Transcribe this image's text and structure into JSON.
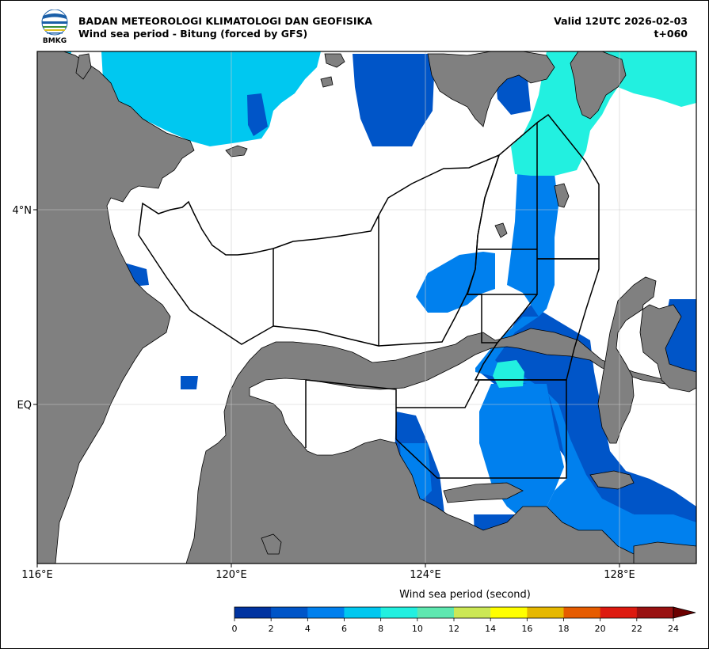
{
  "header": {
    "org_name": "BADAN METEOROLOGI KLIMATOLOGI DAN GEOFISIKA",
    "subtitle": "Wind sea period - Bitung (forced by GFS)",
    "valid": "Valid 12UTC 2026-02-03",
    "lead": "t+060",
    "logo_text": "BMKG"
  },
  "map": {
    "lon_range": [
      116,
      129.6
    ],
    "lat_range": [
      -2.0,
      6.2
    ],
    "x_ticks": [
      {
        "value": 116,
        "label": "116°E"
      },
      {
        "value": 120,
        "label": "120°E"
      },
      {
        "value": 124,
        "label": "124°E"
      },
      {
        "value": 128,
        "label": "128°E"
      }
    ],
    "y_ticks": [
      {
        "value": 4,
        "label": "4°N"
      },
      {
        "value": 0,
        "label": "EQ"
      }
    ],
    "gridlines": true,
    "land_color": "#808080",
    "ocean_color": "#ffffff"
  },
  "colorbar": {
    "title": "Wind sea period (second)",
    "ticks": [
      "0",
      "2",
      "4",
      "6",
      "8",
      "10",
      "12",
      "14",
      "16",
      "18",
      "20",
      "22",
      "24"
    ],
    "colors": [
      "#0033a0",
      "#0055c8",
      "#0080ee",
      "#00c8f0",
      "#22f0e0",
      "#5ee8b0",
      "#cce855",
      "#ffff00",
      "#e6b800",
      "#e65c00",
      "#dd1a10",
      "#991111"
    ],
    "extend_color": "#6b0000",
    "extend": "max"
  },
  "legend_levels": {
    "2-4": "#0055c8",
    "4-6": "#0080ee",
    "6-8": "#00c8f0",
    "8-10": "#22f0e0"
  }
}
